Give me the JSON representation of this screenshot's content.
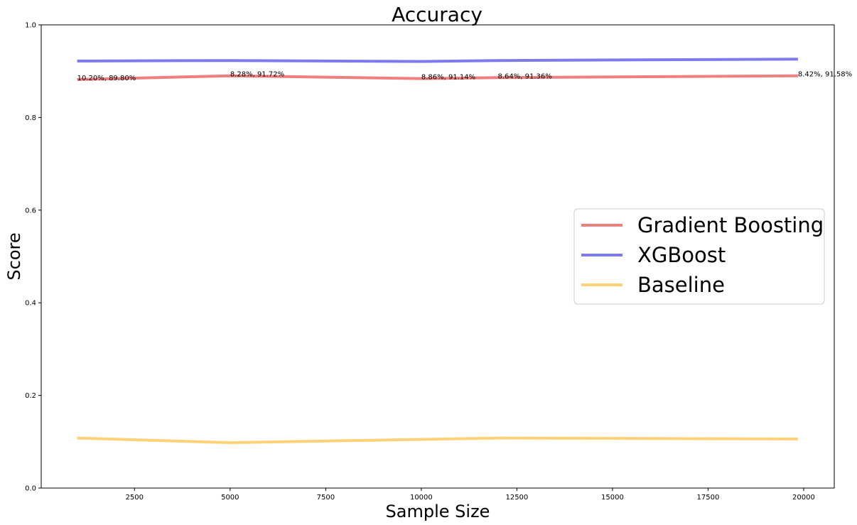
{
  "chart_data": {
    "type": "line",
    "title": "Accuracy",
    "xlabel": "Sample Size",
    "ylabel": "Score",
    "xlim": [
      60,
      20800
    ],
    "ylim": [
      0,
      1
    ],
    "xticks": [
      2500,
      5000,
      7500,
      10000,
      12500,
      15000,
      17500,
      20000
    ],
    "yticks": [
      0.0,
      0.2,
      0.4,
      0.6,
      0.8,
      1.0
    ],
    "grid": false,
    "legend_position": "center-right",
    "x": [
      1000,
      5000,
      10000,
      12000,
      19850
    ],
    "series": [
      {
        "name": "Gradient Boosting",
        "color": "#f08080",
        "values": [
          0.882,
          0.89,
          0.884,
          0.886,
          0.89
        ]
      },
      {
        "name": "XGBoost",
        "color": "#7b7bef",
        "values": [
          0.922,
          0.923,
          0.921,
          0.923,
          0.926
        ]
      },
      {
        "name": "Baseline",
        "color": "#ffd27a",
        "values": [
          0.108,
          0.098,
          0.105,
          0.108,
          0.106
        ]
      }
    ],
    "annotations": [
      {
        "x": 1000,
        "y": 0.882,
        "text": "10.20%, 89.80%"
      },
      {
        "x": 5000,
        "y": 0.89,
        "text": "8.28%, 91.72%"
      },
      {
        "x": 10000,
        "y": 0.884,
        "text": "8.86%, 91.14%"
      },
      {
        "x": 12000,
        "y": 0.886,
        "text": "8.64%, 91.36%"
      },
      {
        "x": 19850,
        "y": 0.89,
        "text": "8.42%, 91.58%"
      }
    ]
  }
}
